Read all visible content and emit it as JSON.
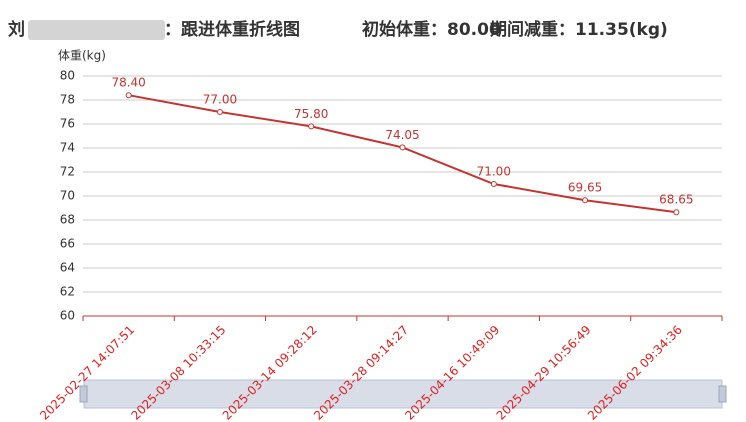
{
  "header": {
    "name_start": "刘",
    "title": "：跟进体重折线图",
    "initial": "初始体重：80.00",
    "loss": "期间减重：11.35(kg)"
  },
  "chart_data": {
    "type": "line",
    "ylabel": "体重(kg)",
    "categories": [
      "2025-02-27 14:07:51",
      "2025-03-08 10:33:15",
      "2025-03-14 09:28:12",
      "2025-03-28 09:14:27",
      "2025-04-16 10:49:09",
      "2025-04-29 10:56:49",
      "2025-06-02 09:34:36"
    ],
    "values": [
      78.4,
      77,
      75.8,
      74.05,
      71,
      69.65,
      68.65
    ],
    "value_labels": [
      "78.40",
      "77.00",
      "75.80",
      "74.05",
      "71.00",
      "69.65",
      "68.65"
    ],
    "color": "#c23531",
    "ylim": [
      60,
      80
    ],
    "yticks": [
      60,
      62,
      64,
      66,
      68,
      70,
      72,
      74,
      76,
      78,
      80
    ],
    "grid": true
  }
}
